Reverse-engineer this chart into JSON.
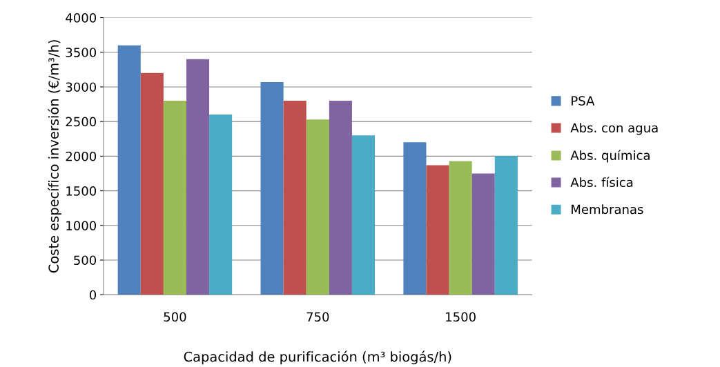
{
  "chart_data": {
    "type": "bar",
    "xlabel": "Capacidad de purificación (m³ biogás/h)",
    "ylabel": "Coste específico inversión (€/m³/h)",
    "categories": [
      "500",
      "750",
      "1500"
    ],
    "series": [
      {
        "name": "PSA",
        "color": "#4f81bd",
        "values": [
          3600,
          3070,
          2200
        ]
      },
      {
        "name": "Abs. con agua",
        "color": "#c0504d",
        "values": [
          3200,
          2800,
          1870
        ]
      },
      {
        "name": "Abs. química",
        "color": "#9bbb59",
        "values": [
          2800,
          2530,
          1930
        ]
      },
      {
        "name": "Abs. física",
        "color": "#8064a2",
        "values": [
          3400,
          2800,
          1750
        ]
      },
      {
        "name": "Membranas",
        "color": "#4bacc6",
        "values": [
          2600,
          2300,
          2000
        ]
      }
    ],
    "ylim": [
      0,
      4000
    ],
    "yticks": [
      0,
      500,
      1000,
      1500,
      2000,
      2500,
      3000,
      3500,
      4000
    ],
    "grid": "y",
    "legend": "right"
  }
}
